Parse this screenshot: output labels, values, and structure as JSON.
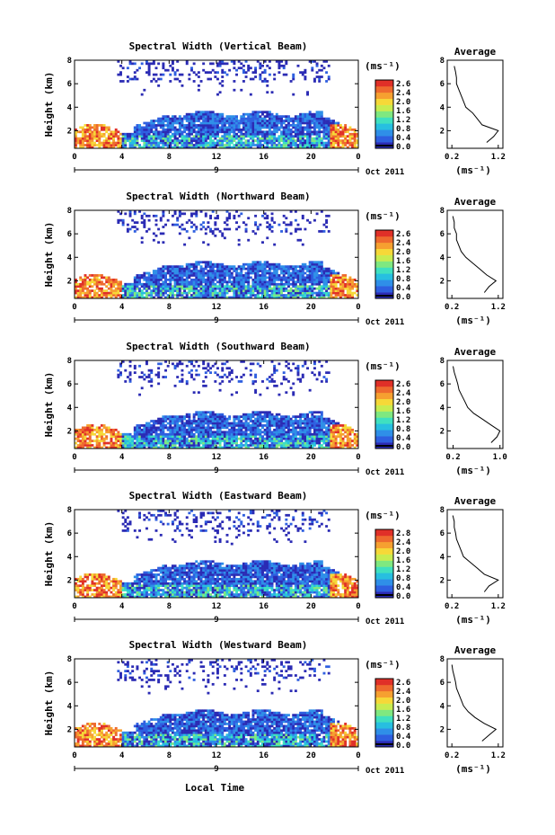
{
  "figure": {
    "bottom_xlabel": "Local Time",
    "date_label": "Oct 2011",
    "day_label": "9",
    "colorbar_unit": "(ms⁻¹)",
    "avg_title": "Average",
    "avg_xlabel": "(ms⁻¹)",
    "ylabel": "Height (km)",
    "colormap": [
      "#2b2bb4",
      "#2e5fe0",
      "#2f8fe8",
      "#27bfe0",
      "#3fe0c0",
      "#7fe880",
      "#c8ec50",
      "#f6d838",
      "#f6a030",
      "#ee6a2e",
      "#e03028"
    ]
  },
  "chart_data": [
    {
      "type": "heatmap",
      "title": "Spectral Width (Vertical Beam)",
      "xlabel": "",
      "ylabel": "Height (km)",
      "x_ticks": [
        "0",
        "4",
        "8",
        "12",
        "16",
        "20",
        "0"
      ],
      "y_ticks": [
        "2",
        "4",
        "6",
        "8"
      ],
      "xlim": [
        0,
        24
      ],
      "ylim": [
        0.5,
        8
      ],
      "colorbar_ticks": [
        "2.6",
        "2.4",
        "2.0",
        "1.6",
        "1.2",
        "0.8",
        "0.4",
        "0.0"
      ],
      "colorbar_range": [
        0.0,
        2.8
      ],
      "average": {
        "title": "Average",
        "x_ticks": [
          "0.2",
          "1.2"
        ],
        "xlim": [
          0.1,
          1.3
        ],
        "y_ticks": [
          "2",
          "4",
          "6",
          "8"
        ],
        "heights": [
          1.0,
          1.5,
          2.0,
          2.5,
          3.0,
          3.5,
          4.0,
          4.5,
          5.0,
          5.5,
          6.0,
          6.5,
          7.0,
          7.5
        ],
        "values": [
          0.95,
          1.1,
          1.2,
          0.85,
          0.75,
          0.65,
          0.5,
          0.45,
          0.4,
          0.35,
          0.3,
          0.3,
          0.28,
          0.25
        ]
      }
    },
    {
      "type": "heatmap",
      "title": "Spectral Width (Northward Beam)",
      "xlabel": "",
      "ylabel": "Height (km)",
      "x_ticks": [
        "0",
        "4",
        "8",
        "12",
        "16",
        "20",
        "0"
      ],
      "y_ticks": [
        "2",
        "4",
        "6",
        "8"
      ],
      "xlim": [
        0,
        24
      ],
      "ylim": [
        0.5,
        8
      ],
      "colorbar_ticks": [
        "2.6",
        "2.4",
        "2.0",
        "1.6",
        "1.2",
        "0.8",
        "0.4",
        "0.0"
      ],
      "colorbar_range": [
        0.0,
        2.8
      ],
      "average": {
        "title": "Average",
        "x_ticks": [
          "0.2",
          "1.2"
        ],
        "xlim": [
          0.1,
          1.3
        ],
        "y_ticks": [
          "2",
          "4",
          "6",
          "8"
        ],
        "heights": [
          1.0,
          1.5,
          2.0,
          2.5,
          3.0,
          3.5,
          4.0,
          4.5,
          5.0,
          5.5,
          6.0,
          6.5,
          7.0,
          7.5
        ],
        "values": [
          0.9,
          1.0,
          1.15,
          0.95,
          0.8,
          0.65,
          0.5,
          0.4,
          0.35,
          0.3,
          0.3,
          0.25,
          0.25,
          0.22
        ]
      }
    },
    {
      "type": "heatmap",
      "title": "Spectral Width (Southward Beam)",
      "xlabel": "",
      "ylabel": "Height (km)",
      "x_ticks": [
        "0",
        "4",
        "8",
        "12",
        "16",
        "20",
        "0"
      ],
      "y_ticks": [
        "2",
        "4",
        "6",
        "8"
      ],
      "xlim": [
        0,
        24
      ],
      "ylim": [
        0.5,
        8
      ],
      "colorbar_ticks": [
        "2.6",
        "2.4",
        "2.0",
        "1.6",
        "1.2",
        "0.8",
        "0.4",
        "0.0"
      ],
      "colorbar_range": [
        0.0,
        2.8
      ],
      "average": {
        "title": "Average",
        "x_ticks": [
          "0.2",
          "1.0"
        ],
        "xlim": [
          0.1,
          1.05
        ],
        "y_ticks": [
          "2",
          "4",
          "6",
          "8"
        ],
        "heights": [
          1.0,
          1.5,
          2.0,
          2.5,
          3.0,
          3.5,
          4.0,
          4.5,
          5.0,
          5.5,
          6.0,
          6.5,
          7.0,
          7.5
        ],
        "values": [
          0.85,
          0.95,
          1.0,
          0.85,
          0.7,
          0.55,
          0.45,
          0.4,
          0.35,
          0.3,
          0.28,
          0.25,
          0.22,
          0.2
        ]
      }
    },
    {
      "type": "heatmap",
      "title": "Spectral Width (Eastward Beam)",
      "xlabel": "",
      "ylabel": "Height (km)",
      "x_ticks": [
        "0",
        "4",
        "8",
        "12",
        "16",
        "20",
        "0"
      ],
      "y_ticks": [
        "2",
        "4",
        "6",
        "8"
      ],
      "xlim": [
        0,
        24
      ],
      "ylim": [
        0.5,
        8
      ],
      "colorbar_ticks": [
        "2.8",
        "2.4",
        "2.0",
        "1.6",
        "1.2",
        "0.8",
        "0.4",
        "0.0"
      ],
      "colorbar_range": [
        0.0,
        2.8
      ],
      "average": {
        "title": "Average",
        "x_ticks": [
          "0.2",
          "1.2"
        ],
        "xlim": [
          0.1,
          1.3
        ],
        "y_ticks": [
          "2",
          "4",
          "6",
          "8"
        ],
        "heights": [
          1.0,
          1.5,
          2.0,
          2.5,
          3.0,
          3.5,
          4.0,
          4.5,
          5.0,
          5.5,
          6.0,
          6.5,
          7.0,
          7.5
        ],
        "values": [
          0.9,
          1.0,
          1.2,
          0.9,
          0.75,
          0.6,
          0.45,
          0.4,
          0.35,
          0.3,
          0.28,
          0.25,
          0.25,
          0.22
        ]
      }
    },
    {
      "type": "heatmap",
      "title": "Spectral Width (Westward Beam)",
      "xlabel": "Local Time",
      "ylabel": "Height (km)",
      "x_ticks": [
        "0",
        "4",
        "8",
        "12",
        "16",
        "20",
        "0"
      ],
      "y_ticks": [
        "2",
        "4",
        "6",
        "8"
      ],
      "xlim": [
        0,
        24
      ],
      "ylim": [
        0.5,
        8
      ],
      "colorbar_ticks": [
        "2.6",
        "2.4",
        "2.0",
        "1.6",
        "1.2",
        "0.8",
        "0.4",
        "0.0"
      ],
      "colorbar_range": [
        0.0,
        2.8
      ],
      "average": {
        "title": "Average",
        "x_ticks": [
          "0.2",
          "1.2"
        ],
        "xlim": [
          0.1,
          1.3
        ],
        "y_ticks": [
          "2",
          "4",
          "6",
          "8"
        ],
        "heights": [
          1.0,
          1.5,
          2.0,
          2.5,
          3.0,
          3.5,
          4.0,
          4.5,
          5.0,
          5.5,
          6.0,
          6.5,
          7.0,
          7.5
        ],
        "values": [
          0.85,
          1.0,
          1.15,
          0.9,
          0.7,
          0.55,
          0.45,
          0.4,
          0.35,
          0.3,
          0.28,
          0.25,
          0.22,
          0.2
        ]
      }
    }
  ]
}
